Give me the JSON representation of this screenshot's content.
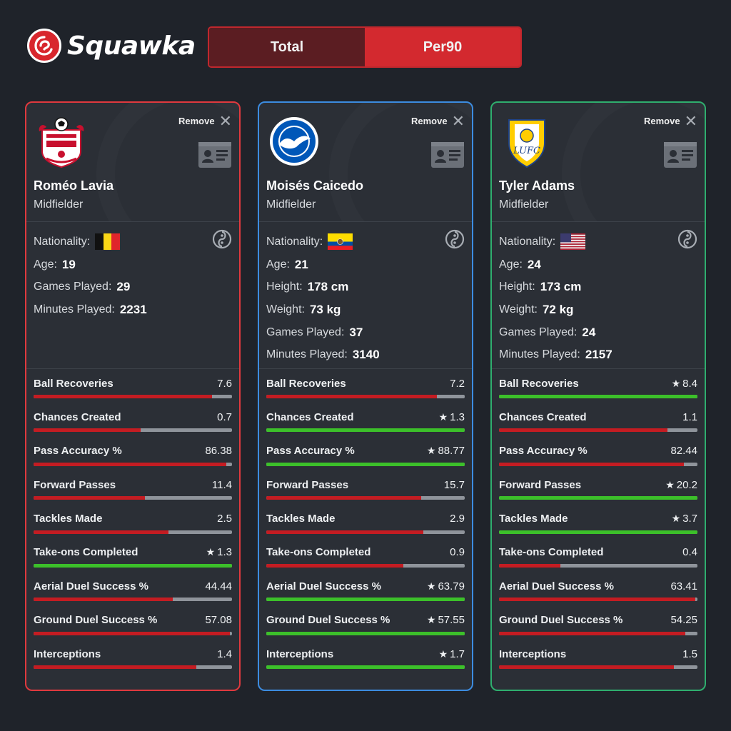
{
  "brand": {
    "name": "Squawka"
  },
  "toggle": {
    "total_label": "Total",
    "per90_label": "Per90",
    "active": "Per90"
  },
  "colors": {
    "card1_border": "#e0393e",
    "card2_border": "#3c8ce0",
    "card3_border": "#2fae6e",
    "bar_red": "#c41c22",
    "bar_green": "#3cc02a",
    "bar_track": "#8f949b"
  },
  "players": [
    {
      "name": "Roméo Lavia",
      "position": "Midfielder",
      "remove_label": "Remove",
      "club_badge": "southampton-badge",
      "nationality_label": "Nationality:",
      "flag": "belgium-flag",
      "info": [
        {
          "label": "Age:",
          "value": "19"
        },
        {
          "label": "Games Played:",
          "value": "29"
        },
        {
          "label": "Minutes Played:",
          "value": "2231"
        }
      ],
      "stats": [
        {
          "label": "Ball Recoveries",
          "value": "7.6",
          "best": false,
          "fill": 0.9
        },
        {
          "label": "Chances Created",
          "value": "0.7",
          "best": false,
          "fill": 0.54
        },
        {
          "label": "Pass Accuracy %",
          "value": "86.38",
          "best": false,
          "fill": 0.97
        },
        {
          "label": "Forward Passes",
          "value": "11.4",
          "best": false,
          "fill": 0.56
        },
        {
          "label": "Tackles Made",
          "value": "2.5",
          "best": false,
          "fill": 0.68
        },
        {
          "label": "Take-ons Completed",
          "value": "1.3",
          "best": true,
          "fill": 1.0
        },
        {
          "label": "Aerial Duel Success %",
          "value": "44.44",
          "best": false,
          "fill": 0.7
        },
        {
          "label": "Ground Duel Success %",
          "value": "57.08",
          "best": false,
          "fill": 0.99
        },
        {
          "label": "Interceptions",
          "value": "1.4",
          "best": false,
          "fill": 0.82
        }
      ]
    },
    {
      "name": "Moisés Caicedo",
      "position": "Midfielder",
      "remove_label": "Remove",
      "club_badge": "brighton-badge",
      "nationality_label": "Nationality:",
      "flag": "ecuador-flag",
      "info": [
        {
          "label": "Age:",
          "value": "21"
        },
        {
          "label": "Height:",
          "value": "178 cm"
        },
        {
          "label": "Weight:",
          "value": "73 kg"
        },
        {
          "label": "Games Played:",
          "value": "37"
        },
        {
          "label": "Minutes Played:",
          "value": "3140"
        }
      ],
      "stats": [
        {
          "label": "Ball Recoveries",
          "value": "7.2",
          "best": false,
          "fill": 0.86
        },
        {
          "label": "Chances Created",
          "value": "1.3",
          "best": true,
          "fill": 1.0
        },
        {
          "label": "Pass Accuracy %",
          "value": "88.77",
          "best": true,
          "fill": 1.0
        },
        {
          "label": "Forward Passes",
          "value": "15.7",
          "best": false,
          "fill": 0.78
        },
        {
          "label": "Tackles Made",
          "value": "2.9",
          "best": false,
          "fill": 0.79
        },
        {
          "label": "Take-ons Completed",
          "value": "0.9",
          "best": false,
          "fill": 0.69
        },
        {
          "label": "Aerial Duel Success %",
          "value": "63.79",
          "best": true,
          "fill": 1.0
        },
        {
          "label": "Ground Duel Success %",
          "value": "57.55",
          "best": true,
          "fill": 1.0
        },
        {
          "label": "Interceptions",
          "value": "1.7",
          "best": true,
          "fill": 1.0
        }
      ]
    },
    {
      "name": "Tyler Adams",
      "position": "Midfielder",
      "remove_label": "Remove",
      "club_badge": "leeds-badge",
      "nationality_label": "Nationality:",
      "flag": "usa-flag",
      "info": [
        {
          "label": "Age:",
          "value": "24"
        },
        {
          "label": "Height:",
          "value": "173 cm"
        },
        {
          "label": "Weight:",
          "value": "72 kg"
        },
        {
          "label": "Games Played:",
          "value": "24"
        },
        {
          "label": "Minutes Played:",
          "value": "2157"
        }
      ],
      "stats": [
        {
          "label": "Ball Recoveries",
          "value": "8.4",
          "best": true,
          "fill": 1.0
        },
        {
          "label": "Chances Created",
          "value": "1.1",
          "best": false,
          "fill": 0.85
        },
        {
          "label": "Pass Accuracy %",
          "value": "82.44",
          "best": false,
          "fill": 0.93
        },
        {
          "label": "Forward Passes",
          "value": "20.2",
          "best": true,
          "fill": 1.0
        },
        {
          "label": "Tackles Made",
          "value": "3.7",
          "best": true,
          "fill": 1.0
        },
        {
          "label": "Take-ons Completed",
          "value": "0.4",
          "best": false,
          "fill": 0.31
        },
        {
          "label": "Aerial Duel Success %",
          "value": "63.41",
          "best": false,
          "fill": 0.99
        },
        {
          "label": "Ground Duel Success %",
          "value": "54.25",
          "best": false,
          "fill": 0.94
        },
        {
          "label": "Interceptions",
          "value": "1.5",
          "best": false,
          "fill": 0.88
        }
      ]
    }
  ]
}
